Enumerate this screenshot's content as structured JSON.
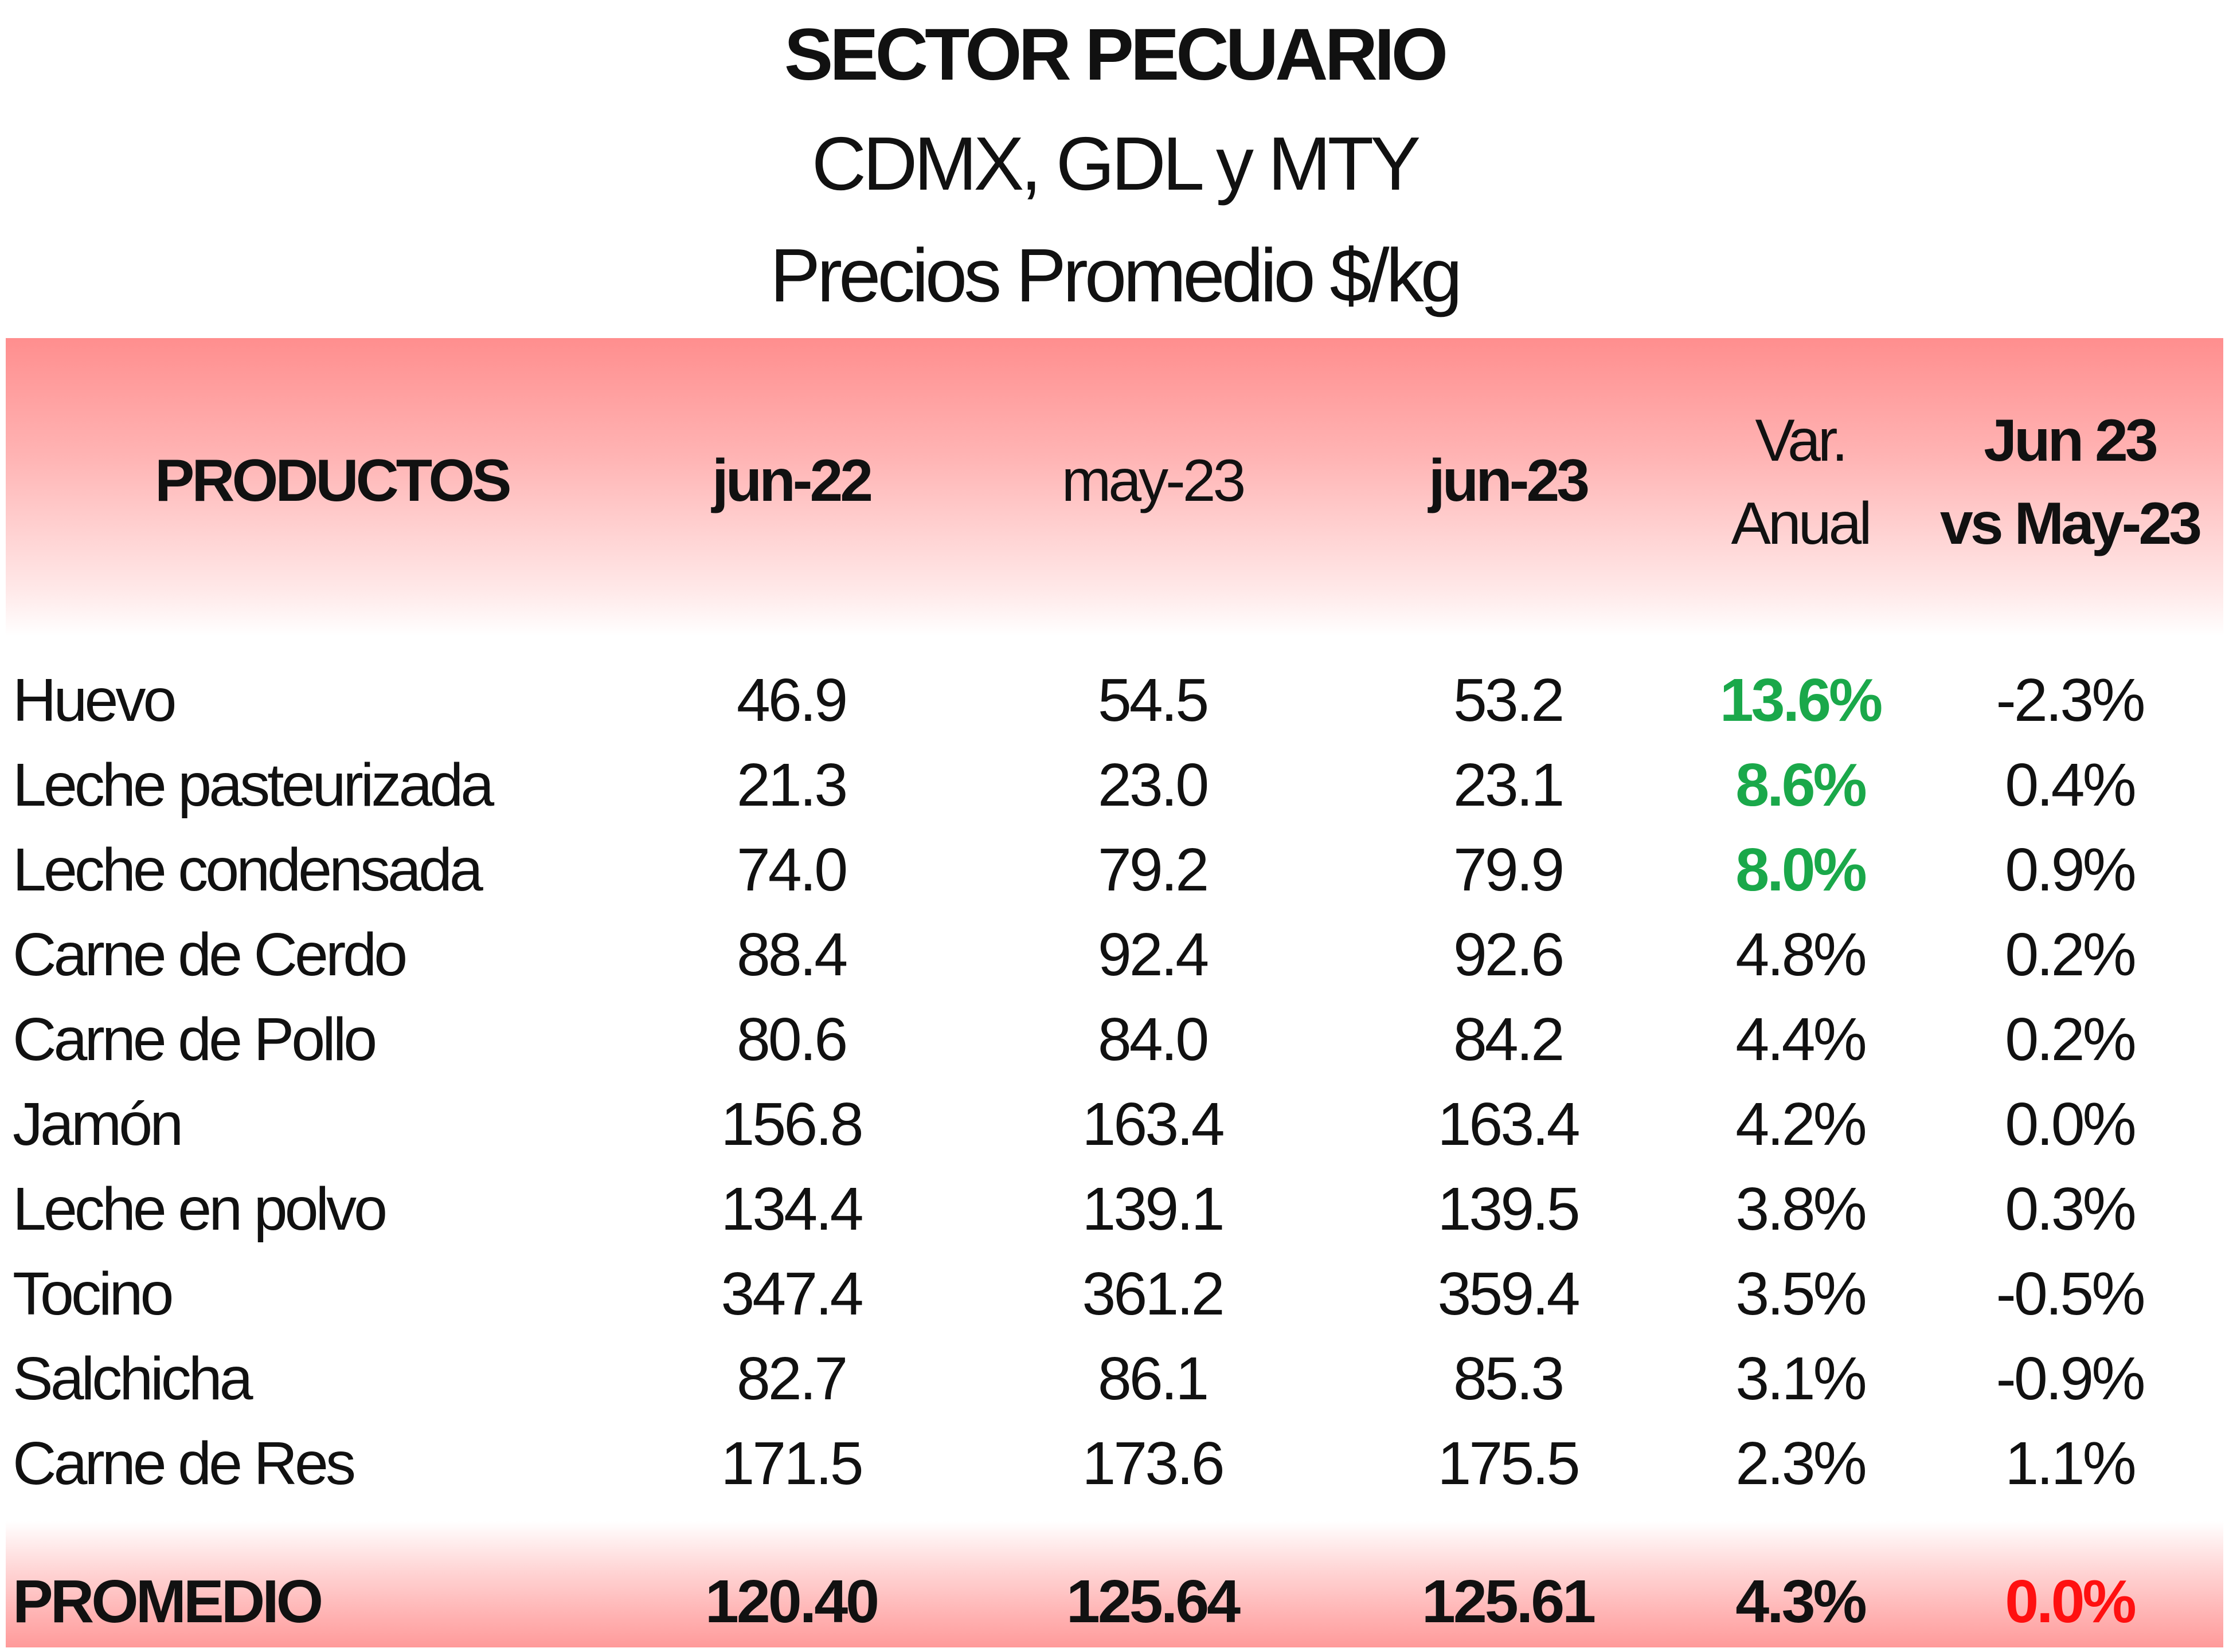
{
  "title": {
    "line1": "SECTOR PECUARIO",
    "line2": "CDMX, GDL y MTY",
    "line3": "Precios Promedio $/kg"
  },
  "header": {
    "product": "PRODUCTOS",
    "col1": "jun-22",
    "col2": "may-23",
    "col3": "jun-23",
    "col4_line1": "Var.",
    "col4_line2": "Anual",
    "col5_line1": "Jun 23",
    "col5_line2": "vs May-23"
  },
  "colors": {
    "header_band_top": "#ff8e8e",
    "green_highlight": "#1aa84a",
    "red_highlight": "#ff1010",
    "text": "#111111"
  },
  "rows": [
    {
      "product": "Huevo",
      "jun22": "46.9",
      "may23": "54.5",
      "jun23": "53.2",
      "var_anual": "13.6%",
      "mensual": "-2.3%",
      "var_highlight": true
    },
    {
      "product": "Leche pasteurizada",
      "jun22": "21.3",
      "may23": "23.0",
      "jun23": "23.1",
      "var_anual": "8.6%",
      "mensual": "0.4%",
      "var_highlight": true
    },
    {
      "product": "Leche condensada",
      "jun22": "74.0",
      "may23": "79.2",
      "jun23": "79.9",
      "var_anual": "8.0%",
      "mensual": "0.9%",
      "var_highlight": true
    },
    {
      "product": "Carne de Cerdo",
      "jun22": "88.4",
      "may23": "92.4",
      "jun23": "92.6",
      "var_anual": "4.8%",
      "mensual": "0.2%",
      "var_highlight": false
    },
    {
      "product": "Carne de Pollo",
      "jun22": "80.6",
      "may23": "84.0",
      "jun23": "84.2",
      "var_anual": "4.4%",
      "mensual": "0.2%",
      "var_highlight": false
    },
    {
      "product": "Jamón",
      "jun22": "156.8",
      "may23": "163.4",
      "jun23": "163.4",
      "var_anual": "4.2%",
      "mensual": "0.0%",
      "var_highlight": false
    },
    {
      "product": "Leche en polvo",
      "jun22": "134.4",
      "may23": "139.1",
      "jun23": "139.5",
      "var_anual": "3.8%",
      "mensual": "0.3%",
      "var_highlight": false
    },
    {
      "product": "Tocino",
      "jun22": "347.4",
      "may23": "361.2",
      "jun23": "359.4",
      "var_anual": "3.5%",
      "mensual": "-0.5%",
      "var_highlight": false
    },
    {
      "product": "Salchicha",
      "jun22": "82.7",
      "may23": "86.1",
      "jun23": "85.3",
      "var_anual": "3.1%",
      "mensual": "-0.9%",
      "var_highlight": false
    },
    {
      "product": "Carne de Res",
      "jun22": "171.5",
      "may23": "173.6",
      "jun23": "175.5",
      "var_anual": "2.3%",
      "mensual": "1.1%",
      "var_highlight": false
    }
  ],
  "total": {
    "product": "PROMEDIO",
    "jun22": "120.40",
    "may23": "125.64",
    "jun23": "125.61",
    "var_anual": "4.3%",
    "mensual": "0.0%"
  }
}
